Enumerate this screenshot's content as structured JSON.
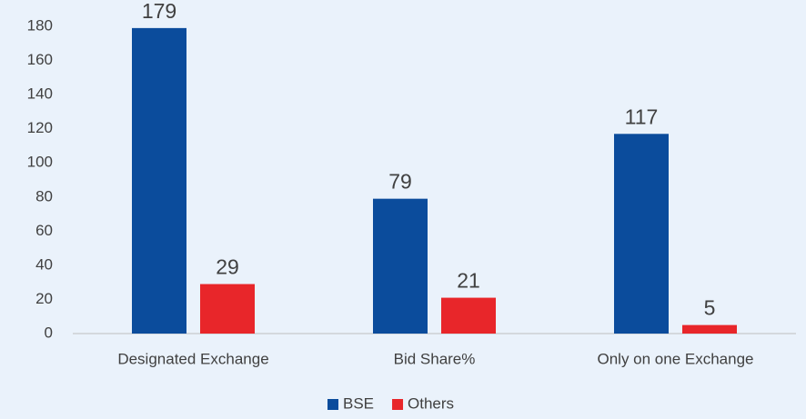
{
  "chart_data": {
    "type": "bar",
    "categories": [
      "Designated Exchange",
      "Bid Share%",
      "Only on one Exchange"
    ],
    "series": [
      {
        "name": "BSE",
        "color": "#0b4c9c",
        "values": [
          179,
          79,
          117
        ]
      },
      {
        "name": "Others",
        "color": "#e8262a",
        "values": [
          29,
          21,
          5
        ]
      }
    ],
    "ylim": [
      0,
      180
    ],
    "yticks": [
      0,
      20,
      40,
      60,
      80,
      100,
      120,
      140,
      160,
      180
    ],
    "grid": false,
    "legend": "bottom"
  }
}
